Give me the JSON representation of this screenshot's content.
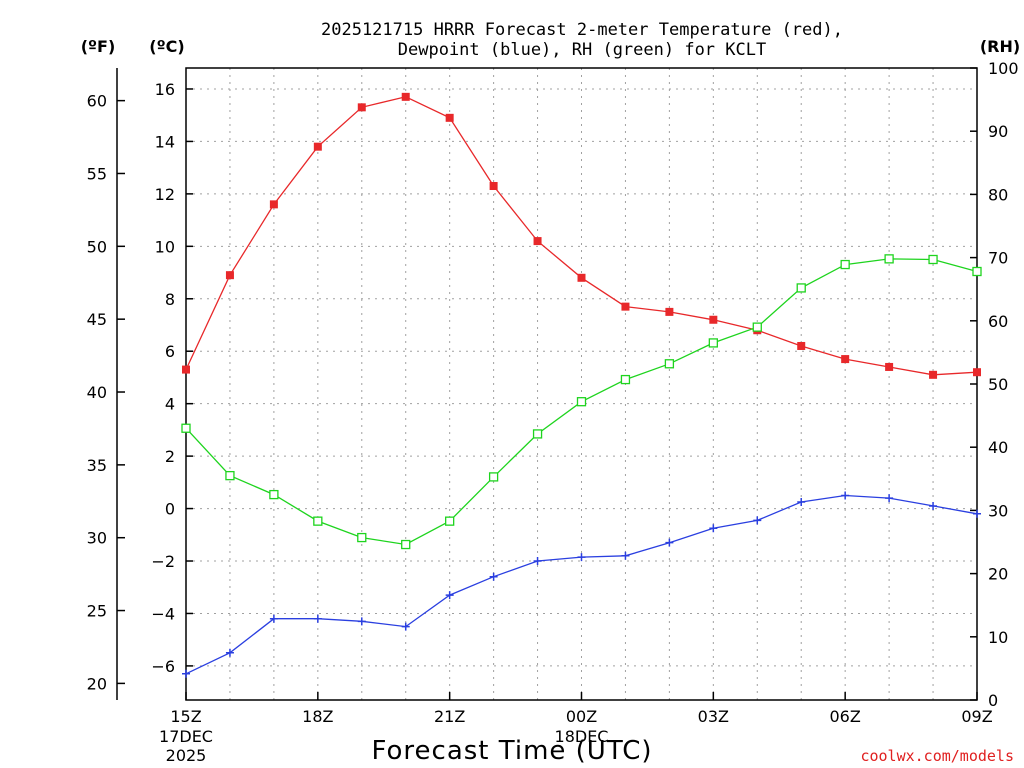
{
  "chart_data": {
    "type": "line",
    "title_line1": "2025121715 HRRR Forecast 2-meter Temperature (red),",
    "title_line2": "Dewpoint (blue), RH (green) for KCLT",
    "units": {
      "fahrenheit": "(ºF)",
      "celsius": "(ºC)",
      "rh": "(RH)"
    },
    "xlabel": "Forecast Time (UTC)",
    "credit": "coolwx.com/models",
    "x_hours": [
      0,
      1,
      2,
      3,
      4,
      5,
      6,
      7,
      8,
      9,
      10,
      11,
      12,
      13,
      14,
      15,
      16,
      17,
      18
    ],
    "x_range": [
      0,
      18
    ],
    "x_ticks": [
      {
        "hour": 0,
        "label": "15Z",
        "sub1": "17DEC",
        "sub2": "2025"
      },
      {
        "hour": 3,
        "label": "18Z",
        "sub1": "",
        "sub2": ""
      },
      {
        "hour": 6,
        "label": "21Z",
        "sub1": "",
        "sub2": ""
      },
      {
        "hour": 9,
        "label": "00Z",
        "sub1": "18DEC",
        "sub2": ""
      },
      {
        "hour": 12,
        "label": "03Z",
        "sub1": "",
        "sub2": ""
      },
      {
        "hour": 15,
        "label": "06Z",
        "sub1": "",
        "sub2": ""
      },
      {
        "hour": 18,
        "label": "09Z",
        "sub1": "",
        "sub2": ""
      }
    ],
    "ylim_c": [
      -7.3,
      16.8
    ],
    "c_ticks": [
      "16",
      "14",
      "12",
      "10",
      "8",
      "6",
      "4",
      "2",
      "0",
      "−2",
      "−4",
      "−6"
    ],
    "c_tick_values": [
      16,
      14,
      12,
      10,
      8,
      6,
      4,
      2,
      0,
      -2,
      -4,
      -6
    ],
    "f_ticks": [
      "60",
      "55",
      "50",
      "45",
      "40",
      "35",
      "30",
      "25",
      "20"
    ],
    "f_tick_values": [
      60,
      55,
      50,
      45,
      40,
      35,
      30,
      25,
      20
    ],
    "ylim_rh": [
      0,
      100
    ],
    "rh_ticks": [
      "100",
      "90",
      "80",
      "70",
      "60",
      "50",
      "40",
      "30",
      "20",
      "10",
      "0"
    ],
    "rh_tick_values": [
      100,
      90,
      80,
      70,
      60,
      50,
      40,
      30,
      20,
      10,
      0
    ],
    "colors": {
      "temperature": "#e8282a",
      "dewpoint": "#2a3fe0",
      "rh": "#1ed41e"
    },
    "series": [
      {
        "name": "2-meter Temperature (C)",
        "axis": "celsius",
        "marker": "filled-square",
        "values": [
          5.3,
          8.9,
          11.6,
          13.8,
          15.3,
          15.7,
          14.9,
          12.3,
          10.2,
          8.8,
          7.7,
          7.5,
          7.2,
          6.8,
          6.2,
          5.7,
          5.4,
          5.1,
          5.2
        ]
      },
      {
        "name": "Dewpoint (C)",
        "axis": "celsius",
        "marker": "plus",
        "values": [
          -6.3,
          -5.5,
          -4.2,
          -4.2,
          -4.3,
          -4.5,
          -3.3,
          -2.6,
          -2.0,
          -1.85,
          -1.8,
          -1.3,
          -0.75,
          -0.45,
          0.25,
          0.5,
          0.4,
          0.1,
          -0.2
        ]
      },
      {
        "name": "RH (%)",
        "axis": "rh",
        "marker": "open-square",
        "values": [
          43,
          35.5,
          32.5,
          28.3,
          25.7,
          24.6,
          28.3,
          35.3,
          42.1,
          47.2,
          50.7,
          53.2,
          56.5,
          59,
          65.2,
          68.9,
          69.8,
          69.7,
          67.8
        ]
      }
    ]
  }
}
